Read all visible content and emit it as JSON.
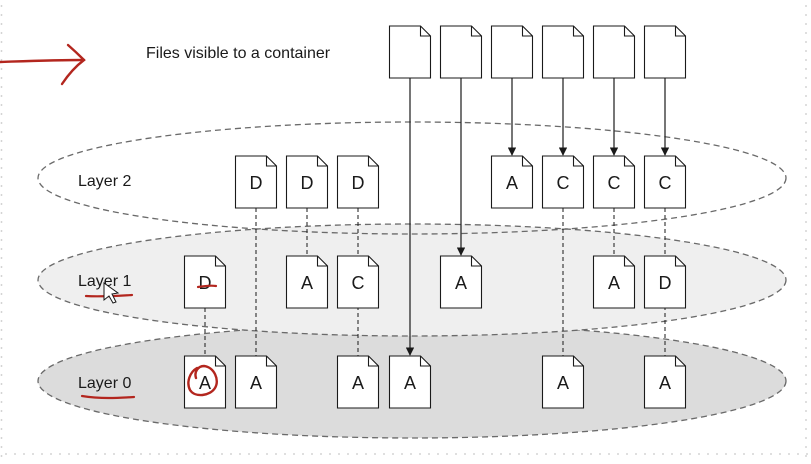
{
  "title": "Files visible to a container",
  "layers": [
    {
      "label": "Layer 2"
    },
    {
      "label": "Layer 1"
    },
    {
      "label": "Layer 0"
    }
  ],
  "columns": [
    {
      "layer2": "",
      "layer1": "D",
      "layer0": "A"
    },
    {
      "layer2": "D",
      "layer1": "",
      "layer0": "A"
    },
    {
      "layer2": "D",
      "layer1": "A",
      "layer0": ""
    },
    {
      "layer2": "D",
      "layer1": "C",
      "layer0": "A"
    },
    {
      "layer2": "",
      "layer1": "",
      "layer0": "A",
      "top": true,
      "topSource": "layer0"
    },
    {
      "layer2": "",
      "layer1": "A",
      "layer0": "",
      "top": true,
      "topSource": "layer1"
    },
    {
      "layer2": "A",
      "layer1": "",
      "layer0": "",
      "top": true,
      "topSource": "layer2"
    },
    {
      "layer2": "C",
      "layer1": "",
      "layer0": "A",
      "top": true,
      "topSource": "layer2"
    },
    {
      "layer2": "C",
      "layer1": "A",
      "layer0": "",
      "top": true,
      "topSource": "layer2"
    },
    {
      "layer2": "C",
      "layer1": "D",
      "layer0": "A",
      "top": true,
      "topSource": "layer2"
    }
  ],
  "colors": {
    "ink": "#1a1a1a",
    "annotation": "#b3261e",
    "layer1Fill": "#efefef",
    "layer0Fill": "#dcdcdc",
    "dots": "#c8c8c8"
  }
}
